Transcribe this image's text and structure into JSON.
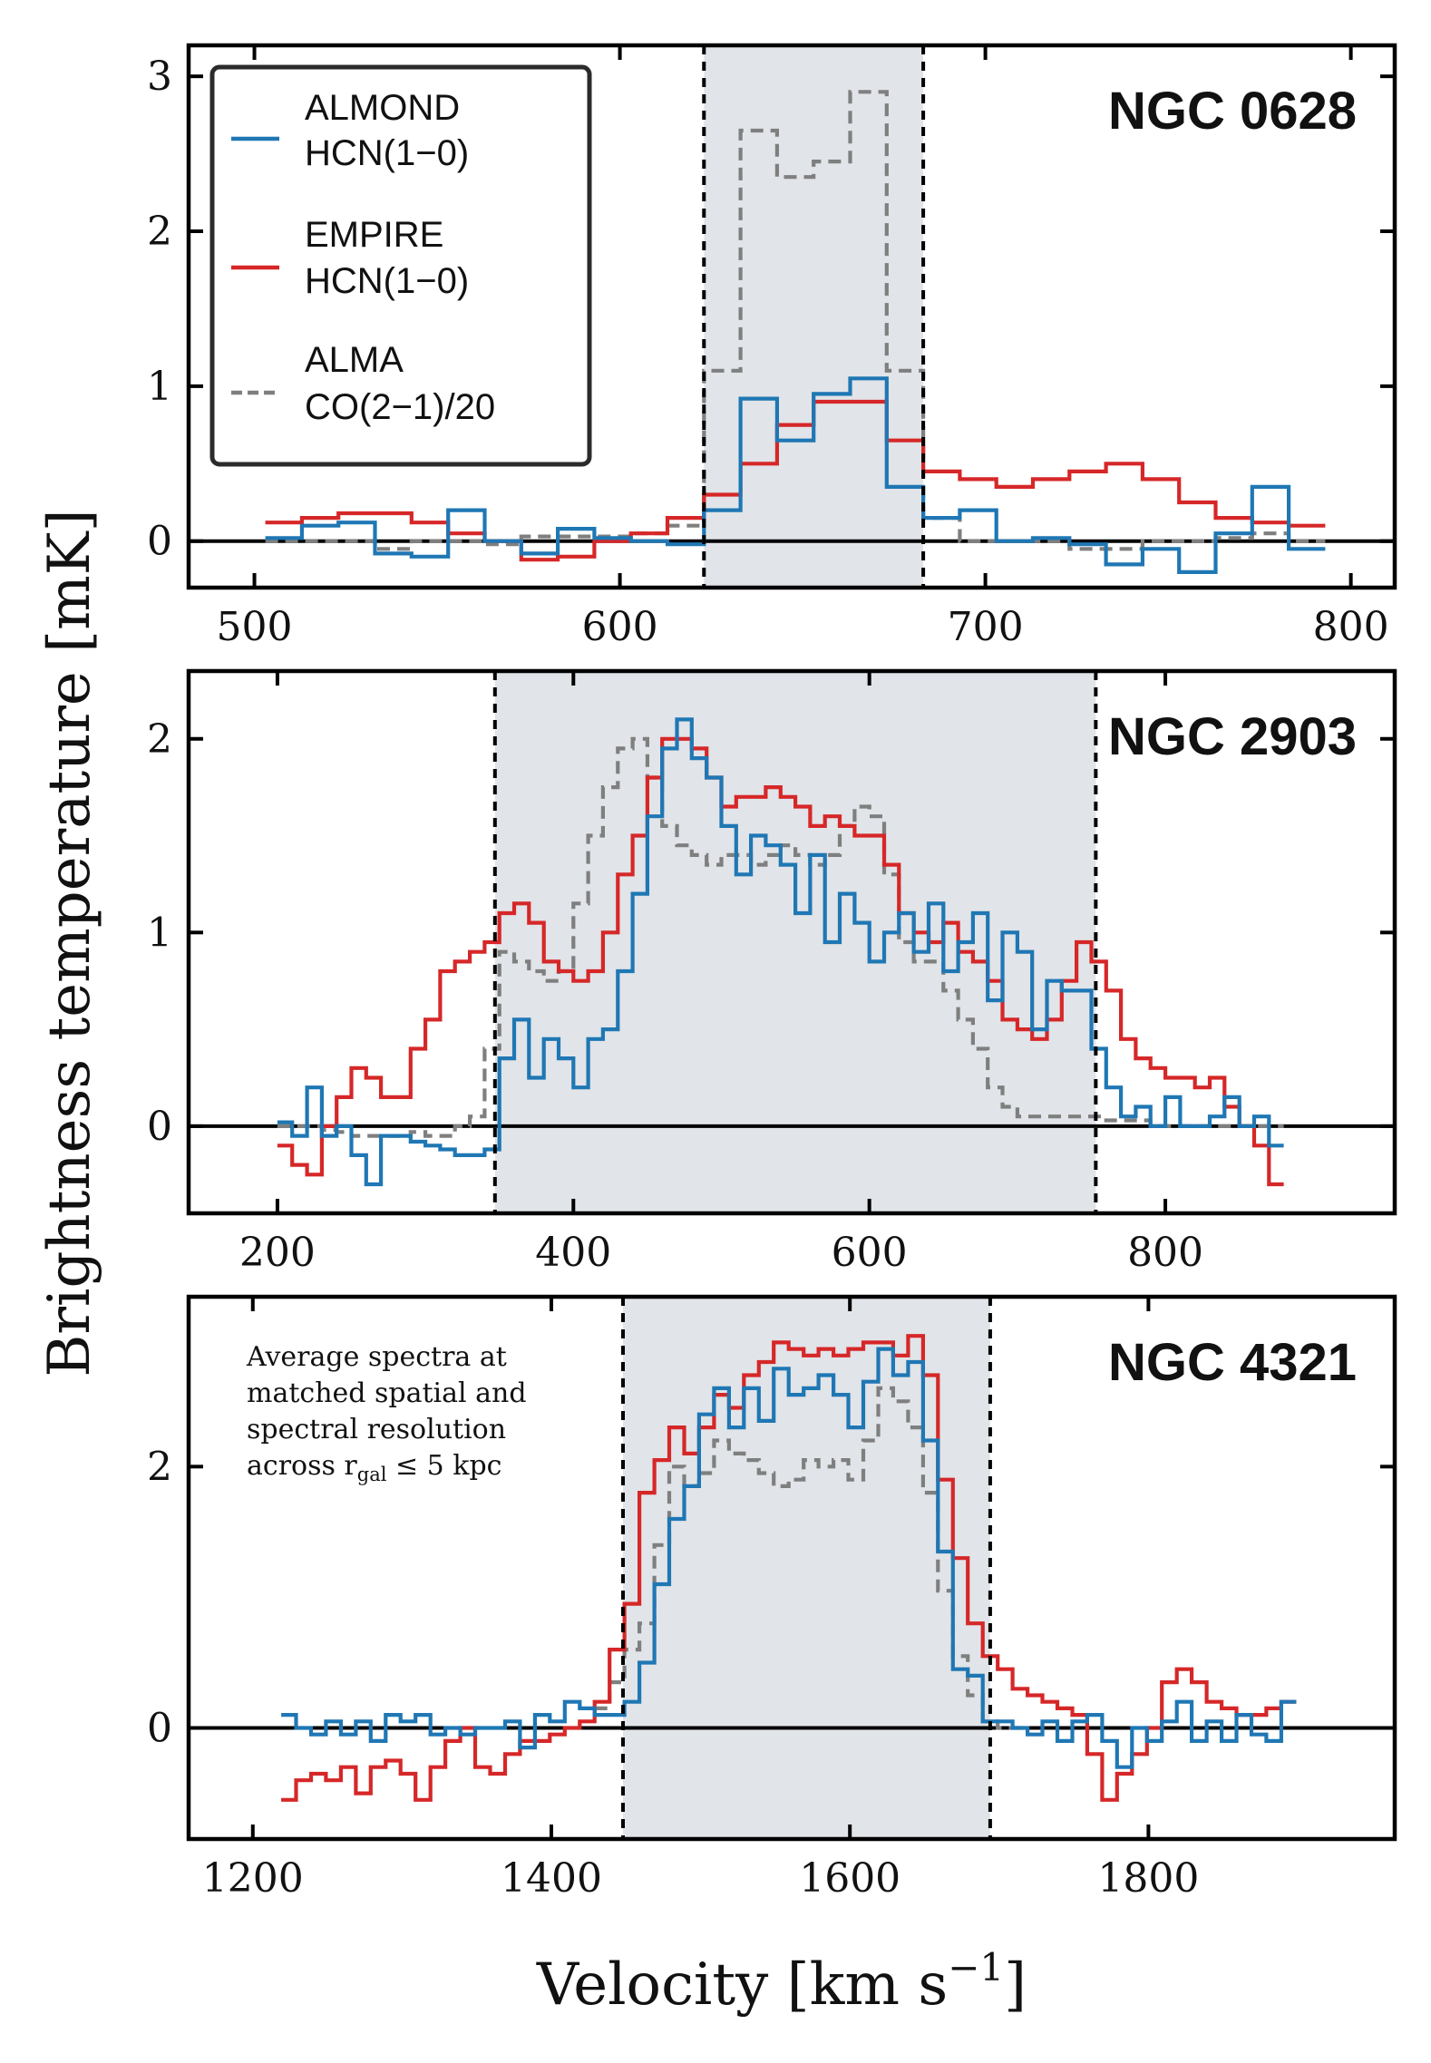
{
  "figure": {
    "ylabel": "Brightness temperature [mK]",
    "xlabel_main": "Velocity [km s",
    "xlabel_sup": "−1",
    "xlabel_close": "]",
    "annotation": [
      "Average spectra at",
      "matched spatial and",
      "spectral resolution",
      "across r",
      "gal",
      " ≤ 5 kpc"
    ]
  },
  "legend": {
    "placement": "top-left of first panel",
    "entries": [
      {
        "line1": "ALMOND",
        "line2": "HCN(1−0)",
        "color": "#1f77b4",
        "style": "solid"
      },
      {
        "line1": "EMPIRE",
        "line2": "HCN(1−0)",
        "color": "#d62728",
        "style": "solid"
      },
      {
        "line1": "ALMA",
        "line2": "CO(2−1)/20",
        "color": "#7f7f7f",
        "style": "dashed"
      }
    ]
  },
  "colors": {
    "almond": "#1f77b4",
    "empire": "#d62728",
    "co": "#7f7f7f",
    "shade": "#e1e4e8"
  },
  "chart_data": [
    {
      "type": "line",
      "galaxy": "NGC 0628",
      "xlim": [
        482,
        812
      ],
      "ylim": [
        -0.3,
        3.2
      ],
      "xticks": [
        500,
        600,
        700,
        800
      ],
      "yticks": [
        0,
        1,
        2,
        3
      ],
      "window": [
        623,
        683
      ],
      "series": [
        {
          "name": "ALMOND HCN(1−0)",
          "x": [
            508,
            518,
            528,
            538,
            548,
            558,
            568,
            578,
            588,
            598,
            608,
            618,
            628,
            638,
            648,
            658,
            668,
            678,
            688,
            698,
            708,
            718,
            728,
            738,
            748,
            758,
            768,
            778,
            788
          ],
          "values": [
            0.02,
            0.1,
            0.12,
            -0.08,
            -0.1,
            0.2,
            0.0,
            -0.08,
            0.08,
            0.02,
            0.0,
            -0.02,
            0.2,
            0.92,
            0.65,
            0.95,
            1.05,
            0.35,
            0.15,
            0.2,
            0.0,
            0.02,
            -0.02,
            -0.15,
            -0.05,
            -0.2,
            0.05,
            0.35,
            -0.05
          ]
        },
        {
          "name": "EMPIRE HCN(1−0)",
          "x": [
            508,
            518,
            528,
            538,
            548,
            558,
            568,
            578,
            588,
            598,
            608,
            618,
            628,
            638,
            648,
            658,
            668,
            678,
            688,
            698,
            708,
            718,
            728,
            738,
            748,
            758,
            768,
            778,
            788
          ],
          "values": [
            0.12,
            0.15,
            0.18,
            0.18,
            0.12,
            0.05,
            0.0,
            -0.12,
            -0.1,
            0.0,
            0.05,
            0.15,
            0.3,
            0.5,
            0.75,
            0.9,
            0.9,
            0.65,
            0.45,
            0.4,
            0.35,
            0.4,
            0.45,
            0.5,
            0.4,
            0.25,
            0.15,
            0.12,
            0.1
          ]
        },
        {
          "name": "ALMA CO(2−1)/20",
          "x": [
            508,
            518,
            528,
            538,
            548,
            558,
            568,
            578,
            588,
            598,
            608,
            618,
            628,
            638,
            648,
            658,
            668,
            678,
            688,
            698,
            708,
            718,
            728,
            738,
            748,
            758,
            768,
            778,
            788
          ],
          "values": [
            0.0,
            0.0,
            0.0,
            -0.05,
            0.0,
            0.0,
            -0.02,
            0.03,
            0.03,
            0.03,
            0.05,
            0.1,
            1.1,
            2.65,
            2.35,
            2.45,
            2.9,
            1.1,
            0.15,
            0.0,
            0.0,
            0.0,
            -0.05,
            -0.05,
            0.0,
            0.0,
            0.02,
            0.05,
            0.0
          ]
        }
      ]
    },
    {
      "type": "line",
      "galaxy": "NGC 2903",
      "xlim": [
        140,
        955
      ],
      "ylim": [
        -0.45,
        2.35
      ],
      "xticks": [
        200,
        400,
        600,
        800
      ],
      "yticks": [
        0,
        1,
        2
      ],
      "window": [
        347,
        753
      ],
      "series": [
        {
          "name": "ALMOND HCN(1−0)",
          "x": [
            205,
            215,
            225,
            235,
            245,
            255,
            265,
            275,
            285,
            295,
            305,
            315,
            325,
            335,
            345,
            355,
            365,
            375,
            385,
            395,
            405,
            415,
            425,
            435,
            445,
            455,
            465,
            475,
            485,
            495,
            505,
            515,
            525,
            535,
            545,
            555,
            565,
            575,
            585,
            595,
            605,
            615,
            625,
            635,
            645,
            655,
            665,
            675,
            685,
            695,
            705,
            715,
            725,
            735,
            745,
            755,
            765,
            775,
            785,
            795,
            805,
            815,
            825,
            835,
            845,
            855,
            865,
            875
          ],
          "values": [
            0.02,
            -0.05,
            0.2,
            -0.05,
            0.0,
            -0.15,
            -0.3,
            -0.05,
            -0.05,
            -0.08,
            -0.1,
            -0.12,
            -0.15,
            -0.15,
            -0.12,
            0.35,
            0.55,
            0.25,
            0.45,
            0.35,
            0.2,
            0.45,
            0.5,
            0.8,
            1.2,
            1.6,
            1.95,
            2.1,
            1.9,
            1.8,
            1.55,
            1.3,
            1.5,
            1.45,
            1.35,
            1.1,
            1.4,
            0.95,
            1.2,
            1.05,
            0.85,
            1.0,
            1.1,
            0.9,
            1.15,
            0.8,
            0.95,
            1.1,
            0.65,
            1.0,
            0.9,
            0.5,
            0.75,
            0.7,
            0.7,
            0.4,
            0.2,
            0.05,
            0.1,
            0.0,
            0.15,
            0.0,
            0.0,
            0.05,
            0.15,
            0.0,
            0.05,
            -0.1
          ]
        },
        {
          "name": "EMPIRE HCN(1−0)",
          "x": [
            205,
            215,
            225,
            235,
            245,
            255,
            265,
            275,
            285,
            295,
            305,
            315,
            325,
            335,
            345,
            355,
            365,
            375,
            385,
            395,
            405,
            415,
            425,
            435,
            445,
            455,
            465,
            475,
            485,
            495,
            505,
            515,
            525,
            535,
            545,
            555,
            565,
            575,
            585,
            595,
            605,
            615,
            625,
            635,
            645,
            655,
            665,
            675,
            685,
            695,
            705,
            715,
            725,
            735,
            745,
            755,
            765,
            775,
            785,
            795,
            805,
            815,
            825,
            835,
            845,
            855,
            865,
            875
          ],
          "values": [
            -0.1,
            -0.2,
            -0.25,
            0.0,
            0.15,
            0.3,
            0.25,
            0.15,
            0.15,
            0.4,
            0.55,
            0.8,
            0.85,
            0.9,
            0.95,
            1.1,
            1.15,
            1.05,
            0.85,
            0.8,
            0.75,
            0.8,
            1.0,
            1.3,
            1.5,
            1.8,
            2.0,
            2.0,
            1.95,
            1.8,
            1.65,
            1.7,
            1.7,
            1.75,
            1.7,
            1.65,
            1.55,
            1.6,
            1.55,
            1.5,
            1.5,
            1.35,
            1.1,
            1.0,
            0.95,
            1.05,
            0.9,
            0.85,
            0.75,
            0.55,
            0.5,
            0.45,
            0.55,
            0.75,
            0.95,
            0.85,
            0.7,
            0.45,
            0.35,
            0.3,
            0.25,
            0.25,
            0.2,
            0.25,
            0.1,
            0.0,
            -0.1,
            -0.3
          ]
        },
        {
          "name": "ALMA CO(2−1)/20",
          "x": [
            205,
            215,
            225,
            235,
            245,
            255,
            265,
            275,
            285,
            295,
            305,
            315,
            325,
            335,
            345,
            355,
            365,
            375,
            385,
            395,
            405,
            415,
            425,
            435,
            445,
            455,
            465,
            475,
            485,
            495,
            505,
            515,
            525,
            535,
            545,
            555,
            565,
            575,
            585,
            595,
            605,
            615,
            625,
            635,
            645,
            655,
            665,
            675,
            685,
            695,
            705,
            715,
            725,
            735,
            745,
            755,
            765,
            775,
            785,
            795,
            805,
            815,
            825,
            835,
            845,
            855,
            865,
            875
          ],
          "values": [
            0.0,
            0.0,
            0.0,
            -0.02,
            -0.03,
            -0.05,
            -0.05,
            -0.05,
            -0.05,
            -0.03,
            -0.05,
            -0.05,
            0.0,
            0.05,
            0.4,
            0.9,
            0.85,
            0.8,
            0.75,
            0.8,
            1.15,
            1.5,
            1.75,
            1.95,
            2.0,
            1.8,
            1.55,
            1.45,
            1.4,
            1.35,
            1.4,
            1.4,
            1.35,
            1.4,
            1.45,
            1.4,
            1.35,
            1.4,
            1.55,
            1.65,
            1.6,
            1.3,
            0.95,
            0.85,
            0.85,
            0.7,
            0.55,
            0.4,
            0.2,
            0.1,
            0.05,
            0.05,
            0.05,
            0.05,
            0.05,
            0.05,
            0.03,
            0.03,
            0.03,
            0.0,
            0.0,
            0.0,
            0.0,
            0.0,
            0.0,
            0.0,
            0.0,
            0.0
          ]
        }
      ]
    },
    {
      "type": "line",
      "galaxy": "NGC 4321",
      "xlim": [
        1157,
        1965
      ],
      "ylim": [
        -0.85,
        3.3
      ],
      "xticks": [
        1200,
        1400,
        1600,
        1800
      ],
      "yticks": [
        0,
        2
      ],
      "window": [
        1448,
        1694
      ],
      "series": [
        {
          "name": "ALMOND HCN(1−0)",
          "x": [
            1224,
            1234,
            1244,
            1254,
            1264,
            1274,
            1284,
            1294,
            1304,
            1314,
            1324,
            1334,
            1344,
            1354,
            1364,
            1374,
            1384,
            1394,
            1404,
            1414,
            1424,
            1434,
            1444,
            1454,
            1464,
            1474,
            1484,
            1494,
            1504,
            1514,
            1524,
            1534,
            1544,
            1554,
            1564,
            1574,
            1584,
            1594,
            1604,
            1614,
            1624,
            1634,
            1644,
            1654,
            1664,
            1674,
            1684,
            1694,
            1704,
            1714,
            1724,
            1734,
            1744,
            1754,
            1764,
            1774,
            1784,
            1794,
            1804,
            1814,
            1824,
            1834,
            1844,
            1854,
            1864,
            1874,
            1884,
            1894
          ],
          "values": [
            0.1,
            0.0,
            -0.05,
            0.05,
            -0.05,
            0.05,
            -0.1,
            0.1,
            0.05,
            0.1,
            -0.05,
            0.0,
            -0.05,
            0.0,
            0.0,
            0.05,
            -0.15,
            0.1,
            0.05,
            0.2,
            0.15,
            0.1,
            0.1,
            0.2,
            0.5,
            1.1,
            1.6,
            1.85,
            2.4,
            2.6,
            2.3,
            2.6,
            2.35,
            2.75,
            2.55,
            2.6,
            2.7,
            2.55,
            2.3,
            2.65,
            2.9,
            2.7,
            2.8,
            2.2,
            1.35,
            0.45,
            0.4,
            0.05,
            0.05,
            0.0,
            -0.05,
            0.05,
            -0.1,
            0.05,
            0.1,
            -0.1,
            -0.3,
            0.0,
            -0.1,
            0.05,
            0.2,
            -0.1,
            0.05,
            -0.1,
            0.1,
            -0.05,
            -0.1,
            0.2
          ]
        },
        {
          "name": "EMPIRE HCN(1−0)",
          "x": [
            1224,
            1234,
            1244,
            1254,
            1264,
            1274,
            1284,
            1294,
            1304,
            1314,
            1324,
            1334,
            1344,
            1354,
            1364,
            1374,
            1384,
            1394,
            1404,
            1414,
            1424,
            1434,
            1444,
            1454,
            1464,
            1474,
            1484,
            1494,
            1504,
            1514,
            1524,
            1534,
            1544,
            1554,
            1564,
            1574,
            1584,
            1594,
            1604,
            1614,
            1624,
            1634,
            1644,
            1654,
            1664,
            1674,
            1684,
            1694,
            1704,
            1714,
            1724,
            1734,
            1744,
            1754,
            1764,
            1774,
            1784,
            1794,
            1804,
            1814,
            1824,
            1834,
            1844,
            1854,
            1864,
            1874,
            1884,
            1894
          ],
          "values": [
            -0.55,
            -0.4,
            -0.35,
            -0.4,
            -0.3,
            -0.5,
            -0.3,
            -0.25,
            -0.35,
            -0.55,
            -0.3,
            -0.1,
            0.0,
            -0.3,
            -0.35,
            -0.2,
            -0.1,
            -0.1,
            -0.05,
            0.0,
            0.05,
            0.2,
            0.6,
            0.95,
            1.8,
            2.05,
            2.3,
            2.1,
            2.3,
            2.55,
            2.45,
            2.7,
            2.8,
            2.95,
            2.9,
            2.85,
            2.9,
            2.85,
            2.9,
            2.95,
            2.95,
            2.85,
            3.0,
            2.7,
            1.9,
            1.3,
            0.8,
            0.55,
            0.45,
            0.3,
            0.25,
            0.2,
            0.15,
            0.1,
            -0.2,
            -0.55,
            -0.35,
            -0.2,
            0.0,
            0.35,
            0.45,
            0.35,
            0.2,
            0.15,
            0.1,
            0.1,
            0.15,
            0.2
          ]
        },
        {
          "name": "ALMA CO(2−1)/20",
          "x": [
            1434,
            1444,
            1454,
            1464,
            1474,
            1484,
            1494,
            1504,
            1514,
            1524,
            1534,
            1544,
            1554,
            1564,
            1574,
            1584,
            1594,
            1604,
            1614,
            1624,
            1634,
            1644,
            1654,
            1664,
            1674,
            1684,
            1694,
            1704,
            1714
          ],
          "values": [
            0.15,
            0.35,
            0.6,
            0.8,
            1.4,
            2.0,
            1.85,
            1.95,
            2.2,
            2.1,
            2.05,
            1.95,
            1.85,
            1.9,
            2.05,
            2.0,
            2.05,
            1.9,
            2.2,
            2.6,
            2.5,
            2.3,
            1.8,
            1.05,
            0.55,
            0.25,
            0.05,
            0.0,
            0.0
          ]
        }
      ]
    }
  ]
}
